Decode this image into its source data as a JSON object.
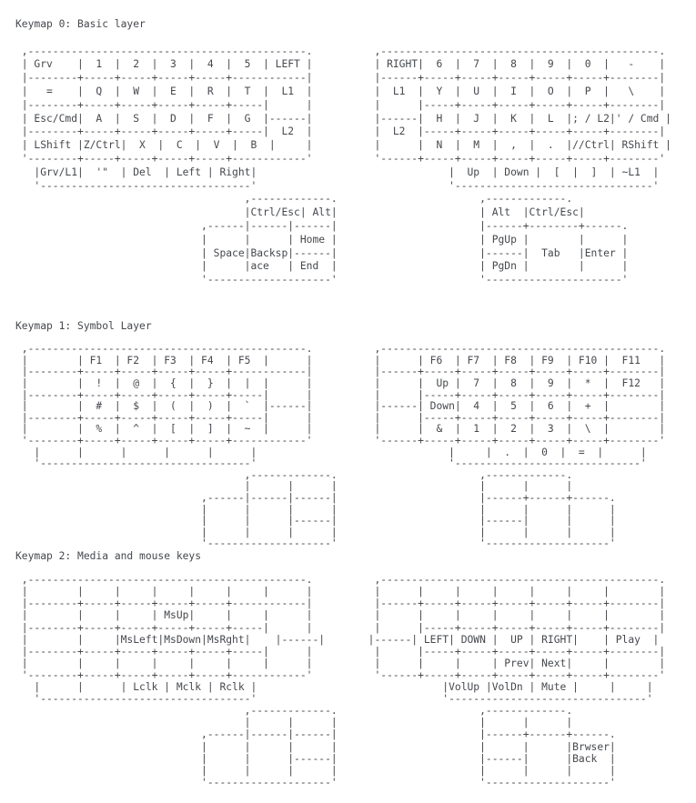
{
  "page": {
    "background": "#ffffff",
    "text_color": "#45484d"
  },
  "keymaps": [
    {
      "title": "Keymap 0: Basic layer",
      "art": [
        " ,---------------------------------------------.          ,---------------------------------------------.",
        " | Grv    |  1  |  2  |  3  |  4  |  5  | LEFT |          | RIGHT|  6  |  7  |  8  |  9  |  0  |   -    |",
        " |--------+-----+-----+-----+-----+------------|          |------+-----+-----+-----+-----+-----+--------|",
        " |   =    |  Q  |  W  |  E  |  R  |  T  |  L1  |          |  L1  |  Y  |  U  |  I  |  O  |  P  |   \\    |",
        " |--------+-----+-----+-----+-----+-----|      |          |      |-----+-----+-----+-----+-----+--------|",
        " | Esc/Cmd|  A  |  S  |  D  |  F  |  G  |------|          |------|  H  |  J  |  K  |  L  |; / L2|' / Cmd |",
        " |--------+-----+-----+-----+-----+-----|  L2  |          |  L2  |-----+-----+-----+-----+-----+--------|",
        " | LShift |Z/Ctrl|  X  |  C  |  V  |  B  |     |          |      |  N  |  M  |  ,  |  .  |//Ctrl| RShift |",
        " '--------+-----+-----+-----+-----+------------'          '------+-----+-----+-----+-----+-----+--------'",
        "   |Grv/L1|  '\"  | Del  | Left | Right|                               |  Up  | Down |  [  |  ]  | ~L1  |",
        "   '----------------------------------'                               '--------------------------------'",
        "                                     ,-------------.                       ,-------------.",
        "                                     |Ctrl/Esc| Alt|                       | Alt  |Ctrl/Esc|",
        "                              ,------|------|------|                       |------+--------+------.",
        "                              |      |      | Home |                       | PgUp |        |      |",
        "                              | Space|Backsp|------|                       |------|  Tab   |Enter |",
        "                              |      |ace   | End  |                       | PgDn |        |      |",
        "                              '--------------------'                       '----------------------'"
      ]
    },
    {
      "title": "Keymap 1: Symbol Layer",
      "art": [
        " ,---------------------------------------------.          ,---------------------------------------------.",
        " |        | F1  | F2  | F3  | F4  | F5  |      |          |      | F6  | F7  | F8  | F9  | F10 |  F11   |",
        " |--------+-----+-----+-----+-----+------------|          |------+-----+-----+-----+-----+-----+--------|",
        " |        |  !  |  @  |  {  |  }  |  |  |      |          |      |  Up |  7  |  8  |  9  |  *  |  F12   |",
        " |--------+-----+-----+-----+-----+-----|      |          |      |-----+-----+-----+-----+-----+--------|",
        " |        |  #  |  $  |  (  |  )  |  `  |------|          |------| Down|  4  |  5  |  6  |  +  |        |",
        " |--------+-----+-----+-----+-----+-----|      |          |      |-----+-----+-----+-----+-----+--------|",
        " |        |  %  |  ^  |  [  |  ]  |  ~  |      |          |      |  &  |  1  |  2  |  3  |  \\  |        |",
        " '--------+-----+-----+-----+-----+------------'          '------+-----+-----+-----+-----+-----+--------'",
        "   |      |      |      |      |      |                               |     |  .  |  0  |  =  |      |",
        "   '----------------------------------'                               '------------------------------'",
        "                                     ,-------------.                       ,-------------.",
        "                                     |      |      |                       |      |      |",
        "                              ,------|------|------|                       |------+------+------.",
        "                              |      |      |      |                       |      |      |      |",
        "                              |      |      |------|                       |------|      |      |",
        "                              |      |      |      |                       |      |      |      |",
        "                              '--------------------'                       '--------------------'"
      ]
    },
    {
      "title": "Keymap 2: Media and mouse keys",
      "art": [
        " ,---------------------------------------------.          ,---------------------------------------------.",
        " |        |     |     |     |     |     |      |          |      |     |     |     |     |     |        |",
        " |--------+-----+-----+-----+-----+------------|          |------+-----+-----+-----+-----+-----+--------|",
        " |        |     |     | MsUp|     |     |      |          |      |     |     |     |     |     |        |",
        " |--------+-----+-----+-----+-----+-----|      |          |      |-----+-----+-----+-----+-----+--------|",
        " |        |     |MsLeft|MsDown|MsRght|    |------|       |------| LEFT| DOWN |  UP | RIGHT|    | Play  |",
        " |--------+-----+-----+-----+-----+-----|      |          |      |-----+-----+-----+-----+-----+--------|",
        " |        |     |     |     |     |     |      |          |      |     |     | Prev| Next|     |        |",
        " '--------+-----+-----+-----+-----+------------'          '------+-----+-----+-----+-----+-----+--------'",
        "   |      |      | Lclk | Mclk | Rclk |                              |VolUp |VolDn | Mute |     |     |",
        "   '----------------------------------'                              '--------------------------------'",
        "                                     ,-------------.                       ,-------------.",
        "                                     |      |      |                       |      |      |",
        "                              ,------|------|------|                       |------+------+------.",
        "                              |      |      |      |                       |      |      |Brwser|",
        "                              |      |      |------|                       |------|      |Back  |",
        "                              |      |      |      |                       |      |      |      |",
        "                              '--------------------'                       '--------------------'"
      ]
    }
  ]
}
